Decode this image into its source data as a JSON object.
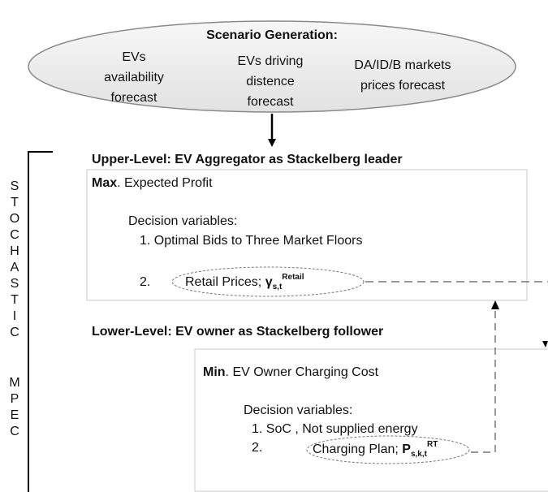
{
  "scenario": {
    "title": "Scenario Generation:",
    "items": [
      [
        "EVs",
        "availability",
        "forecast"
      ],
      [
        "EVs driving",
        "distence",
        "forecast"
      ],
      [
        "DA/ID/B markets",
        "prices forecast"
      ]
    ]
  },
  "side_label": {
    "top": [
      "S",
      "T",
      "O",
      "C",
      "H",
      "A",
      "S",
      "T",
      "I",
      "C"
    ],
    "bottom": [
      "M",
      "P",
      "E",
      "C"
    ]
  },
  "upper": {
    "heading": "Upper-Level: EV Aggregator as Stackelberg leader",
    "objective_key": "Max",
    "objective_rest": ". Expected Profit",
    "decision_title": "Decision variables:",
    "item1": "1.  Optimal Bids to Three Market Floors",
    "item2_num": "2.",
    "item2_text": "Retail Prices; ",
    "item2_symbol": "γ",
    "item2_sub": "s,t",
    "item2_sup": "Retail"
  },
  "lower": {
    "heading": "Lower-Level: EV owner as Stackelberg follower",
    "objective_key": "Min",
    "objective_rest": ". EV Owner Charging Cost",
    "decision_title": "Decision variables:",
    "item1": "1. SoC , Not supplied energy",
    "item2_num": "2.",
    "item2_text": "Charging Plan; ",
    "item2_symbol": "P",
    "item2_sub": "s,k,t",
    "item2_sup": "RT"
  }
}
